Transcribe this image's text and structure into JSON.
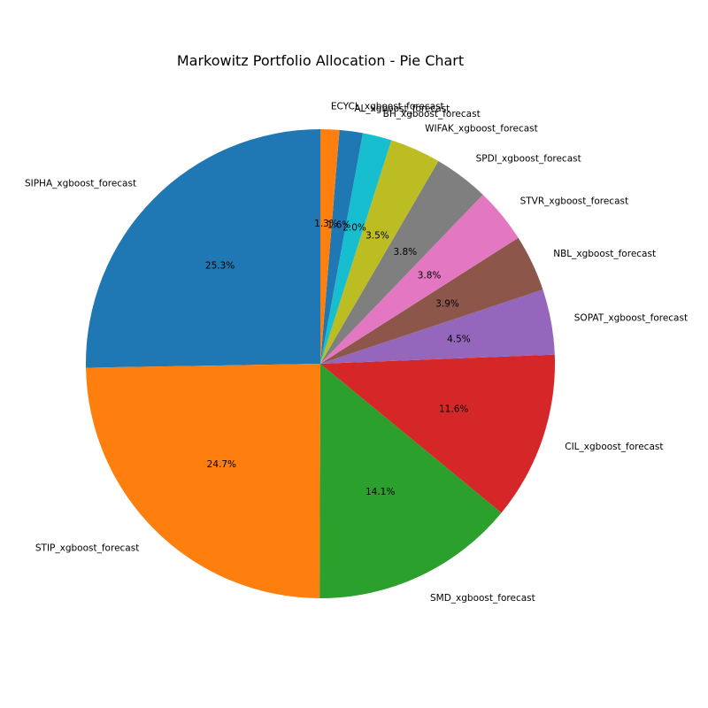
{
  "chart_data": {
    "type": "pie",
    "title": "Markowitz Portfolio Allocation - Pie Chart",
    "start_angle_deg": 90,
    "direction": "counterclockwise",
    "slices": [
      {
        "label": "SIPHA_xgboost_forecast",
        "value": 25.3,
        "pct_text": "25.3%",
        "color": "#1f77b4"
      },
      {
        "label": "STIP_xgboost_forecast",
        "value": 24.7,
        "pct_text": "24.7%",
        "color": "#ff7f0e"
      },
      {
        "label": "SMD_xgboost_forecast",
        "value": 14.1,
        "pct_text": "14.1%",
        "color": "#2ca02c"
      },
      {
        "label": "CIL_xgboost_forecast",
        "value": 11.6,
        "pct_text": "11.6%",
        "color": "#d62728"
      },
      {
        "label": "SOPAT_xgboost_forecast",
        "value": 4.5,
        "pct_text": "4.5%",
        "color": "#9467bd"
      },
      {
        "label": "NBL_xgboost_forecast",
        "value": 3.9,
        "pct_text": "3.9%",
        "color": "#8c564b"
      },
      {
        "label": "STVR_xgboost_forecast",
        "value": 3.8,
        "pct_text": "3.8%",
        "color": "#e377c2"
      },
      {
        "label": "SPDI_xgboost_forecast",
        "value": 3.8,
        "pct_text": "3.8%",
        "color": "#7f7f7f"
      },
      {
        "label": "WIFAK_xgboost_forecast",
        "value": 3.5,
        "pct_text": "3.5%",
        "color": "#bcbd22"
      },
      {
        "label": "BH_xgboost_forecast",
        "value": 2.0,
        "pct_text": "2.0%",
        "color": "#17becf"
      },
      {
        "label": "AL_xgboost_forecast",
        "value": 1.6,
        "pct_text": "1.6%",
        "color": "#1f77b4"
      },
      {
        "label": "ECYCL_xgboost_forecast",
        "value": 1.3,
        "pct_text": "1.3%",
        "color": "#ff7f0e"
      }
    ]
  }
}
